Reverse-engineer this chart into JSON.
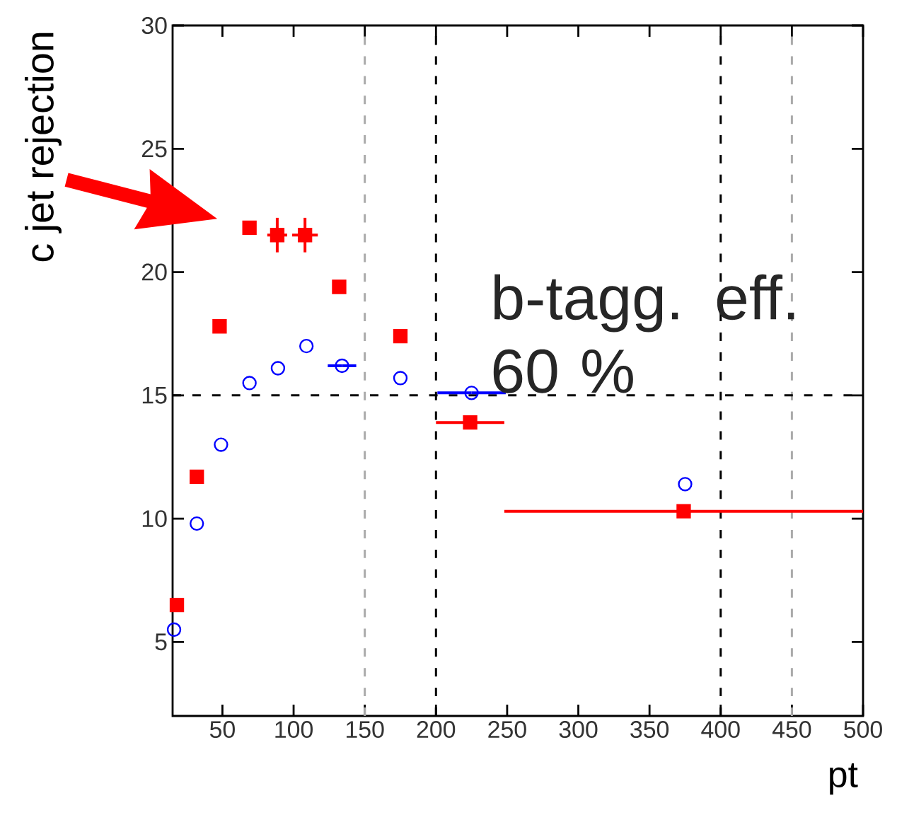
{
  "chart_data": {
    "type": "scatter",
    "xlabel": "pt",
    "ylabel": "c jet rejection",
    "xlim": [
      15,
      500
    ],
    "ylim": [
      2,
      30
    ],
    "xticks": [
      50,
      100,
      150,
      200,
      250,
      300,
      350,
      400,
      450,
      500
    ],
    "yticks": [
      5,
      10,
      15,
      20,
      25,
      30
    ],
    "series": [
      {
        "color": "#ff0000",
        "marker": "square",
        "x": [
          18,
          32,
          48,
          69,
          88.5,
          108,
          132,
          175,
          224,
          374
        ],
        "values": [
          6.5,
          11.7,
          17.8,
          21.8,
          21.5,
          21.5,
          19.4,
          17.4,
          13.9,
          10.3
        ],
        "xerrors": [
          null,
          null,
          null,
          null,
          7,
          9,
          null,
          null,
          24,
          126
        ],
        "errors": [
          null,
          null,
          null,
          null,
          0.7,
          0.7,
          null,
          null,
          null,
          null
        ]
      },
      {
        "color": "#0000ff",
        "marker": "circle",
        "x": [
          16,
          32,
          49,
          69,
          89,
          109,
          134,
          175,
          225,
          375
        ],
        "values": [
          5.5,
          9.8,
          13.0,
          15.5,
          16.1,
          17.0,
          16.2,
          15.7,
          15.1,
          11.4
        ],
        "xerrors": [
          null,
          null,
          null,
          null,
          null,
          null,
          10,
          null,
          24,
          null
        ]
      }
    ],
    "ref_lines": [
      {
        "axis": "x",
        "value": 150,
        "color": "#aaaaaa",
        "line_style": "dashed"
      },
      {
        "axis": "x",
        "value": 200,
        "color": "#000000",
        "line_style": "dashed"
      },
      {
        "axis": "x",
        "value": 400,
        "color": "#000000",
        "line_style": "dashed"
      },
      {
        "axis": "x",
        "value": 450,
        "color": "#aaaaaa",
        "line_style": "dashed"
      },
      {
        "axis": "y",
        "value": 15,
        "color": "#000000",
        "line_style": "dashed"
      }
    ],
    "annotations": [
      "b-tagg. eff. 60 %"
    ]
  }
}
